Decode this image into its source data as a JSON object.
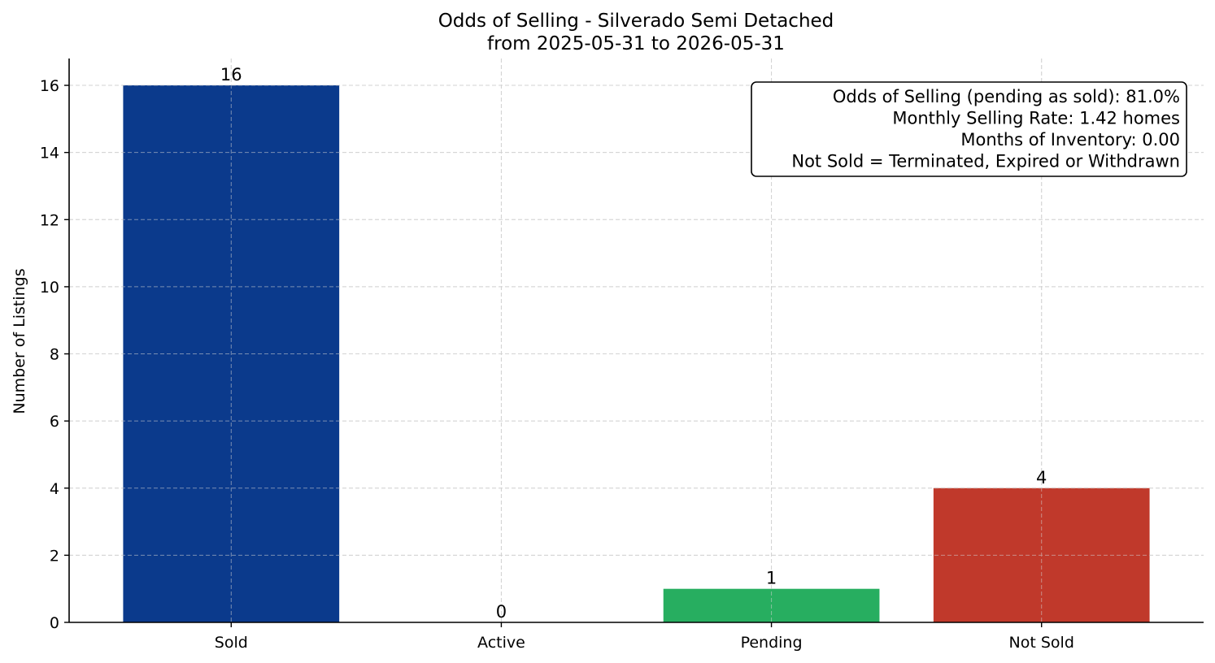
{
  "chart_data": {
    "type": "bar",
    "title": "Odds of Selling - Silverado Semi Detached",
    "subtitle": "from 2025-05-31 to 2026-05-31",
    "xlabel": "",
    "ylabel": "Number of Listings",
    "categories": [
      "Sold",
      "Active",
      "Pending",
      "Not Sold"
    ],
    "values": [
      16,
      0,
      1,
      4
    ],
    "data_labels": [
      "16",
      "0",
      "1",
      "4"
    ],
    "colors": [
      "#0b3a8c",
      "#0b3a8c",
      "#27ae60",
      "#c0392b"
    ],
    "ylim": [
      0,
      16.8
    ],
    "yticks": [
      0,
      2,
      4,
      6,
      8,
      10,
      12,
      14,
      16
    ],
    "grid": true,
    "annotation_box": {
      "placement": "top-right",
      "lines": [
        "Odds of Selling (pending as sold): 81.0%",
        "Monthly Selling Rate: 1.42 homes",
        "Months of Inventory: 0.00",
        "Not Sold = Terminated, Expired or Withdrawn"
      ]
    }
  }
}
